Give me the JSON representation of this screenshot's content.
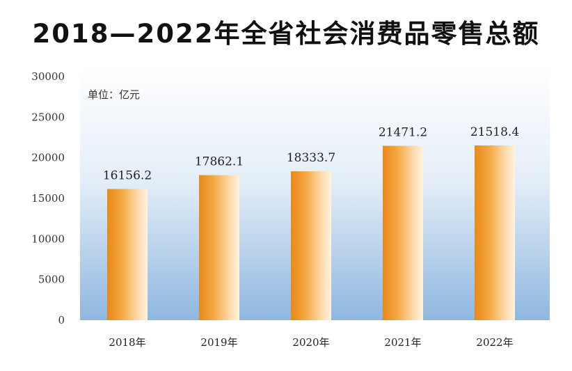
{
  "chart_data": {
    "type": "bar",
    "title": "2018—2022年全省社会消费品零售总额",
    "unit": "单位：亿元",
    "categories": [
      "2018年",
      "2019年",
      "2020年",
      "2021年",
      "2022年"
    ],
    "values": [
      16156.2,
      17862.1,
      18333.7,
      21471.2,
      21518.4
    ],
    "value_labels": [
      "16156.2",
      "17862.1",
      "18333.7",
      "21471.2",
      "21518.4"
    ],
    "yticks": [
      "0",
      "5000",
      "10000",
      "15000",
      "20000",
      "25000",
      "30000"
    ],
    "ylim": [
      0,
      30000
    ],
    "grid": false,
    "colors": {
      "bar_dark": "#e8891a",
      "bar_light": "#fff3e0",
      "plot_bg_top": "#ffffff",
      "plot_bg_bottom": "#8fb7df"
    }
  }
}
